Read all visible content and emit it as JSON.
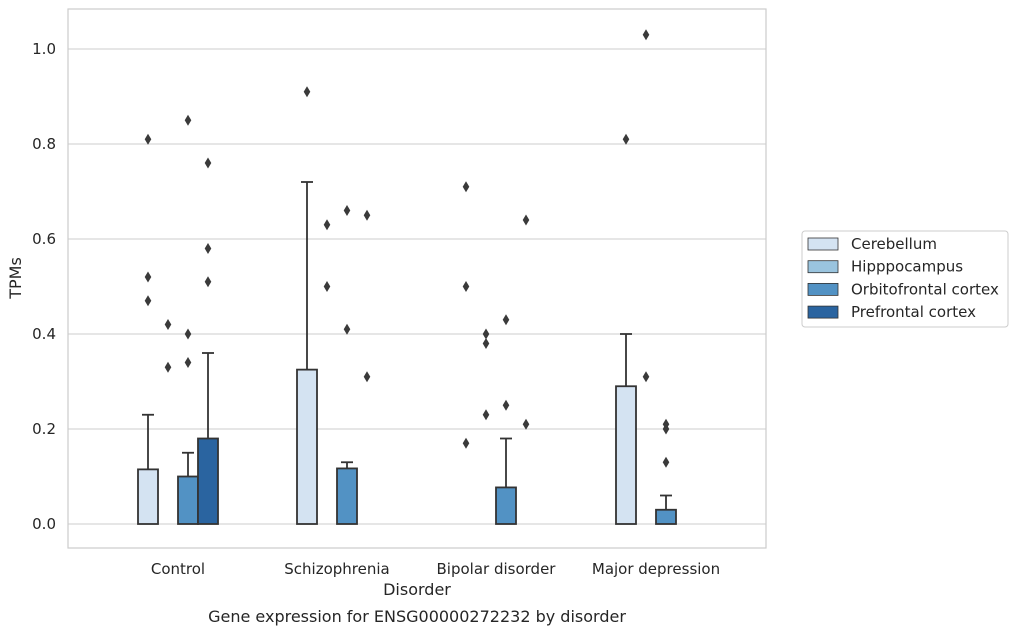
{
  "chart_data": {
    "type": "bar",
    "caption": "Gene expression for ENSG00000272232 by disorder",
    "xlabel": "Disorder",
    "ylabel": "TPMs",
    "ylim": [
      -0.05,
      1.08
    ],
    "yticks": [
      0.0,
      0.2,
      0.4,
      0.6,
      0.8,
      1.0
    ],
    "ytick_labels": [
      "0.0",
      "0.2",
      "0.4",
      "0.6",
      "0.8",
      "1.0"
    ],
    "grid": "horizontal",
    "legend_position": "right",
    "categories": [
      "Control",
      "Schizophrenia",
      "Bipolar disorder",
      "Major depression"
    ],
    "series": [
      {
        "name": "Cerebellum",
        "color": "#d4e3f2",
        "values": [
          0.115,
          0.325,
          0.0,
          0.29
        ],
        "error_upper": [
          0.23,
          0.72,
          null,
          0.4
        ],
        "outliers": [
          [
            0.81,
            0.52,
            0.47
          ],
          [
            0.91
          ],
          [
            0.71,
            0.5,
            0.17
          ],
          [
            0.81
          ]
        ]
      },
      {
        "name": "Hipppocampus",
        "color": "#9ac4de",
        "values": [
          0.0,
          0.0,
          0.0,
          0.0
        ],
        "error_upper": [
          null,
          null,
          null,
          null
        ],
        "outliers": [
          [
            0.42,
            0.33
          ],
          [
            0.63,
            0.5
          ],
          [
            0.4,
            0.38,
            0.23
          ],
          [
            1.03,
            0.31
          ]
        ]
      },
      {
        "name": "Orbitofrontal cortex",
        "color": "#5292c4",
        "values": [
          0.1,
          0.117,
          0.077,
          0.03
        ],
        "error_upper": [
          0.15,
          0.13,
          0.18,
          0.06
        ],
        "outliers": [
          [
            0.85,
            0.4,
            0.34
          ],
          [
            0.66,
            0.41
          ],
          [
            0.43,
            0.25
          ],
          [
            0.21,
            0.2,
            0.13
          ]
        ]
      },
      {
        "name": "Prefrontal cortex",
        "color": "#2a64a0",
        "values": [
          0.18,
          0.0,
          0.0,
          0.0
        ],
        "error_upper": [
          0.36,
          null,
          null,
          null
        ],
        "outliers": [
          [
            0.76,
            0.58,
            0.51
          ],
          [
            0.65,
            0.31
          ],
          [
            0.64,
            0.21
          ],
          []
        ]
      }
    ]
  }
}
